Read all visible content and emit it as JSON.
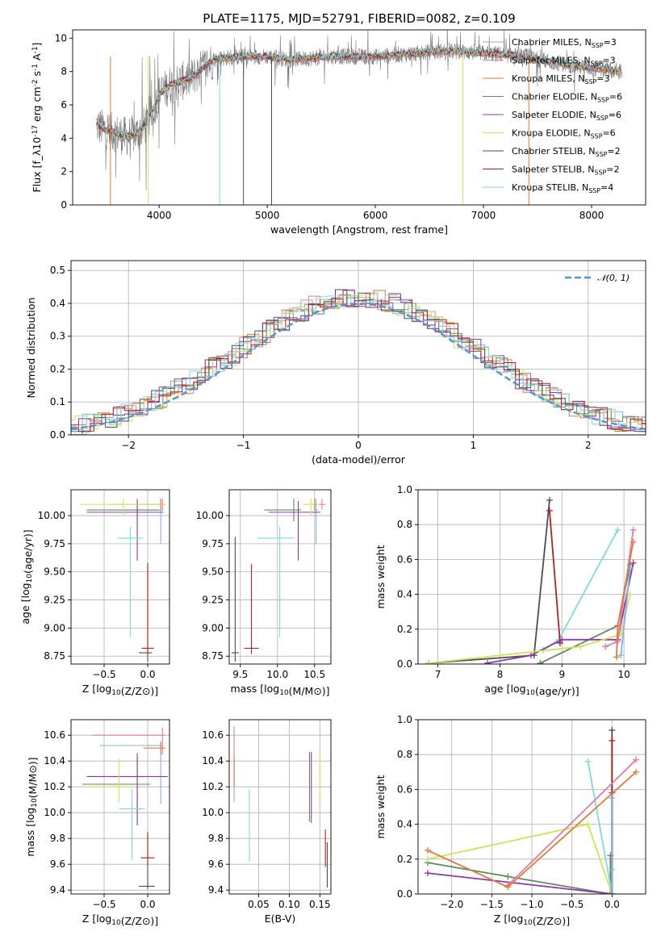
{
  "title": "PLATE=1175, MJD=52791, FIBERID=0082, z=0.109",
  "series": [
    {
      "name": "Chabrier MILES, N_{SSP}=3",
      "color": "#7fb2e5"
    },
    {
      "name": "Salpeter MILES, N_{SSP}=3",
      "color": "#e37ba7"
    },
    {
      "name": "Kroupa MILES, N_{SSP}=3",
      "color": "#e07b39"
    },
    {
      "name": "Chabrier ELODIE, N_{SSP}=6",
      "color": "#5d8a5e"
    },
    {
      "name": "Salpeter ELODIE, N_{SSP}=6",
      "color": "#8b3aa8"
    },
    {
      "name": "Kroupa ELODIE, N_{SSP}=6",
      "color": "#d4e157"
    },
    {
      "name": "Chabrier STELIB, N_{SSP}=2",
      "color": "#4d4d4d"
    },
    {
      "name": "Salpeter STELIB, N_{SSP}=2",
      "color": "#b22222"
    },
    {
      "name": "Kroupa STELIB, N_{SSP}=4",
      "color": "#7fdbdb"
    }
  ],
  "chart_data": [
    {
      "id": "spectrum",
      "type": "line",
      "title": "PLATE=1175, MJD=52791, FIBERID=0082, z=0.109",
      "xlabel": "wavelength [Angstrom, rest frame]",
      "ylabel": "Flux [f_λ10^{-17} erg cm^{-2} s^{-1} A^{-1}]",
      "xlim": [
        3200,
        8500
      ],
      "ylim": [
        0,
        10.5
      ],
      "xticks": [
        4000,
        5000,
        6000,
        7000,
        8000
      ],
      "yticks": [
        0,
        2,
        4,
        6,
        8,
        10
      ],
      "grid": false,
      "legend": "right",
      "data_range": [
        3420,
        8280
      ],
      "continuum": {
        "x": [
          3420,
          3500,
          3600,
          3700,
          3800,
          3900,
          4000,
          4100,
          4200,
          4300,
          4400,
          4500,
          4600,
          4800,
          5000,
          5200,
          5400,
          5600,
          5800,
          6000,
          6200,
          6400,
          6600,
          6800,
          7000,
          7200,
          7400,
          7600,
          7800,
          8000,
          8280
        ],
        "y": [
          4.8,
          4.5,
          4.3,
          4.1,
          4.3,
          5.0,
          6.6,
          7.2,
          7.4,
          7.6,
          8.2,
          8.7,
          8.8,
          8.9,
          8.9,
          8.7,
          8.8,
          8.9,
          8.9,
          8.9,
          9.0,
          9.1,
          9.2,
          9.2,
          9.1,
          9.0,
          8.9,
          8.6,
          8.4,
          8.2,
          8.0
        ]
      },
      "spike_lines": [
        {
          "x": 3550,
          "color": "#e07b39"
        },
        {
          "x": 3900,
          "color": "#d4e157"
        },
        {
          "x": 4560,
          "color": "#7fdbdb"
        },
        {
          "x": 4780,
          "color": "#4d4d4d"
        },
        {
          "x": 5040,
          "color": "#4d4d4d"
        },
        {
          "x": 6810,
          "color": "#d4e157"
        },
        {
          "x": 7420,
          "color": "#e07b39"
        }
      ]
    },
    {
      "id": "residuals",
      "type": "step",
      "xlabel": "(data-model)/error",
      "ylabel": "Normed distribution",
      "xlim": [
        -2.5,
        2.5
      ],
      "ylim": [
        0,
        0.53
      ],
      "xticks": [
        -2,
        -1,
        0,
        1,
        2
      ],
      "yticks": [
        0.0,
        0.1,
        0.2,
        0.3,
        0.4,
        0.5
      ],
      "grid": true,
      "legend": "top-right",
      "reference_curve": {
        "name": "𝒩(0, 1)",
        "mean": 0,
        "std": 1,
        "color": "#5b8fd6"
      },
      "bin_width": 0.1
    },
    {
      "id": "age_vs_z",
      "type": "errorbar",
      "xlabel": "Z [log10(Z/Z⊙)]",
      "ylabel": "age  [log10(age/yr)]",
      "xlim": [
        -0.88,
        0.25
      ],
      "ylim": [
        8.68,
        10.23
      ],
      "xticks": [
        -0.5,
        0.0
      ],
      "yticks": [
        8.75,
        9.0,
        9.25,
        9.5,
        9.75,
        10.0
      ],
      "grid": true,
      "points": [
        {
          "s": 0,
          "x": 0.15,
          "y": 10.05,
          "xerr": [
            0.5,
            0.03
          ],
          "yerr": [
            0.3,
            0.1
          ]
        },
        {
          "s": 1,
          "x": 0.17,
          "y": 10.1,
          "xerr": [
            0.6,
            0.03
          ],
          "yerr": [
            0.05,
            0.05
          ]
        },
        {
          "s": 2,
          "x": 0.15,
          "y": 10.1,
          "xerr": [
            0.1,
            0.05
          ],
          "yerr": [
            0.05,
            0.05
          ]
        },
        {
          "s": 3,
          "x": -0.12,
          "y": 10.05,
          "xerr": [
            0.58,
            0.25
          ],
          "yerr": [
            0.1,
            0.1
          ]
        },
        {
          "s": 4,
          "x": -0.12,
          "y": 10.03,
          "xerr": [
            0.58,
            0.3
          ],
          "yerr": [
            0.43,
            0.1
          ]
        },
        {
          "s": 5,
          "x": -0.28,
          "y": 10.1,
          "xerr": [
            0.5,
            0.48
          ],
          "yerr": [
            0.1,
            0.05
          ]
        },
        {
          "s": 6,
          "x": 0.0,
          "y": 8.78,
          "xerr": [
            0.1,
            0.05
          ],
          "yerr": [
            0.08,
            0.8
          ]
        },
        {
          "s": 7,
          "x": 0.0,
          "y": 8.82,
          "xerr": [
            0.07,
            0.07
          ],
          "yerr": [
            0.05,
            0.75
          ]
        },
        {
          "s": 8,
          "x": -0.2,
          "y": 9.8,
          "xerr": [
            0.15,
            0.15
          ],
          "yerr": [
            0.88,
            0.1
          ]
        }
      ]
    },
    {
      "id": "age_vs_mass",
      "type": "errorbar",
      "xlabel": "mass [log10(M/M⊙)]",
      "ylabel": "",
      "xlim": [
        9.35,
        10.72
      ],
      "ylim": [
        8.68,
        10.23
      ],
      "xticks": [
        9.5,
        10.0,
        10.5
      ],
      "yticks": [
        8.75,
        9.0,
        9.25,
        9.5,
        9.75,
        10.0
      ],
      "grid": true,
      "points": [
        {
          "s": 0,
          "x": 10.52,
          "y": 10.05,
          "xerr": [
            0.03,
            0.03
          ],
          "yerr": [
            0.3,
            0.1
          ]
        },
        {
          "s": 1,
          "x": 10.6,
          "y": 10.1,
          "xerr": [
            0.05,
            0.05
          ],
          "yerr": [
            0.05,
            0.05
          ]
        },
        {
          "s": 2,
          "x": 10.5,
          "y": 10.1,
          "xerr": [
            0.03,
            0.03
          ],
          "yerr": [
            0.05,
            0.05
          ]
        },
        {
          "s": 3,
          "x": 10.22,
          "y": 10.05,
          "xerr": [
            0.4,
            0.1
          ],
          "yerr": [
            0.1,
            0.1
          ]
        },
        {
          "s": 4,
          "x": 10.28,
          "y": 10.03,
          "xerr": [
            0.4,
            0.3
          ],
          "yerr": [
            0.43,
            0.1
          ]
        },
        {
          "s": 5,
          "x": 10.45,
          "y": 10.1,
          "xerr": [
            0.1,
            0.05
          ],
          "yerr": [
            0.1,
            0.05
          ]
        },
        {
          "s": 6,
          "x": 9.43,
          "y": 8.78,
          "xerr": [
            0.05,
            0.05
          ],
          "yerr": [
            0.08,
            1.03
          ]
        },
        {
          "s": 7,
          "x": 9.65,
          "y": 8.82,
          "xerr": [
            0.1,
            0.1
          ],
          "yerr": [
            0.05,
            0.75
          ]
        },
        {
          "s": 8,
          "x": 10.03,
          "y": 9.8,
          "xerr": [
            0.3,
            0.2
          ],
          "yerr": [
            0.88,
            0.1
          ]
        }
      ]
    },
    {
      "id": "massweight_vs_age",
      "type": "line",
      "xlabel": "age  [log10(age/yr)]",
      "ylabel": "mass weight",
      "xlim": [
        6.68,
        10.35
      ],
      "ylim": [
        0,
        1.0
      ],
      "xticks": [
        7,
        8,
        9,
        10
      ],
      "yticks": [
        0.0,
        0.2,
        0.4,
        0.6,
        0.8,
        1.0
      ],
      "grid": true,
      "lines": [
        {
          "s": 8,
          "x": [
            8.7,
            8.95,
            9.9
          ],
          "y": [
            0.08,
            0.14,
            0.77
          ]
        },
        {
          "s": 6,
          "x": [
            8.8,
            8.55,
            6.85
          ],
          "y": [
            0.94,
            0.05,
            0.005
          ]
        },
        {
          "s": 7,
          "x": [
            8.8,
            8.97
          ],
          "y": [
            0.88,
            0.12
          ]
        },
        {
          "s": 3,
          "x": [
            8.65,
            9.9,
            10.1
          ],
          "y": [
            0.005,
            0.22,
            0.57
          ]
        },
        {
          "s": 4,
          "x": [
            7.8,
            8.5,
            9.0,
            9.9,
            10.15
          ],
          "y": [
            0.005,
            0.05,
            0.14,
            0.14,
            0.58
          ]
        },
        {
          "s": 5,
          "x": [
            6.85,
            9.3,
            9.95,
            10.1
          ],
          "y": [
            0.005,
            0.1,
            0.17,
            0.4
          ]
        },
        {
          "s": 1,
          "x": [
            9.7,
            9.9,
            10.15
          ],
          "y": [
            0.1,
            0.13,
            0.77
          ]
        },
        {
          "s": 2,
          "x": [
            9.88,
            9.9,
            10.15
          ],
          "y": [
            0.04,
            0.22,
            0.7
          ]
        },
        {
          "s": 0,
          "x": [
            9.95,
            10.1
          ],
          "y": [
            0.05,
            0.55
          ]
        }
      ]
    },
    {
      "id": "mass_vs_z",
      "type": "errorbar",
      "xlabel": "Z [log10(Z/Z⊙)]",
      "ylabel": "mass [log10(M/M⊙)]",
      "xlim": [
        -0.88,
        0.25
      ],
      "ylim": [
        9.37,
        10.72
      ],
      "xticks": [
        -0.5,
        0.0
      ],
      "yticks": [
        9.4,
        9.6,
        9.8,
        10.0,
        10.2,
        10.4,
        10.6
      ],
      "grid": true,
      "points": [
        {
          "s": 0,
          "x": 0.15,
          "y": 10.52,
          "xerr": [
            0.7,
            0.03
          ],
          "yerr": [
            0.45,
            0.03
          ]
        },
        {
          "s": 1,
          "x": 0.17,
          "y": 10.6,
          "xerr": [
            0.8,
            0.03
          ],
          "yerr": [
            0.15,
            0.06
          ]
        },
        {
          "s": 2,
          "x": 0.15,
          "y": 10.5,
          "xerr": [
            0.2,
            0.05
          ],
          "yerr": [
            0.05,
            0.05
          ]
        },
        {
          "s": 3,
          "x": -0.12,
          "y": 10.22,
          "xerr": [
            0.63,
            0.15
          ],
          "yerr": [
            0.3,
            0.2
          ]
        },
        {
          "s": 4,
          "x": -0.12,
          "y": 10.28,
          "xerr": [
            0.58,
            0.35
          ],
          "yerr": [
            0.38,
            0.18
          ]
        },
        {
          "s": 5,
          "x": -0.33,
          "y": 10.2,
          "xerr": [
            0.38,
            0.15
          ],
          "yerr": [
            0.12,
            0.22
          ]
        },
        {
          "s": 6,
          "x": 0.0,
          "y": 9.43,
          "xerr": [
            0.1,
            0.08
          ],
          "yerr": [
            0.02,
            0.4
          ]
        },
        {
          "s": 7,
          "x": 0.0,
          "y": 9.65,
          "xerr": [
            0.08,
            0.08
          ],
          "yerr": [
            0.05,
            0.2
          ]
        },
        {
          "s": 8,
          "x": -0.18,
          "y": 10.03,
          "xerr": [
            0.15,
            0.15
          ],
          "yerr": [
            0.4,
            0.15
          ]
        }
      ]
    },
    {
      "id": "mass_vs_ebv",
      "type": "errorbar",
      "xlabel": "E(B-V)",
      "ylabel": "",
      "xlim": [
        0.002,
        0.168
      ],
      "ylim": [
        9.37,
        10.72
      ],
      "xticks": [
        0.05,
        0.1,
        0.15
      ],
      "yticks": [
        9.4,
        9.6,
        9.8,
        10.0,
        10.2,
        10.4,
        10.6
      ],
      "grid": true,
      "points": [
        {
          "s": 0,
          "x": 0.01,
          "y": 10.2,
          "xerr": [
            0,
            0
          ],
          "yerr": [
            0.12,
            0.22
          ]
        },
        {
          "s": 1,
          "x": 0.01,
          "y": 10.45,
          "xerr": [
            0,
            0
          ],
          "yerr": [
            0.25,
            0.22
          ]
        },
        {
          "s": 2,
          "x": 0.01,
          "y": 10.35,
          "xerr": [
            0,
            0
          ],
          "yerr": [
            0.15,
            0.1
          ]
        },
        {
          "s": 3,
          "x": 0.133,
          "y": 10.15,
          "xerr": [
            0,
            0
          ],
          "yerr": [
            0.22,
            0.32
          ]
        },
        {
          "s": 4,
          "x": 0.136,
          "y": 10.2,
          "xerr": [
            0,
            0
          ],
          "yerr": [
            0.28,
            0.27
          ]
        },
        {
          "s": 5,
          "x": 0.15,
          "y": 10.25,
          "xerr": [
            0,
            0
          ],
          "yerr": [
            0.18,
            0.18
          ]
        },
        {
          "s": 6,
          "x": 0.162,
          "y": 9.6,
          "xerr": [
            0,
            0
          ],
          "yerr": [
            0.18,
            0.17
          ]
        },
        {
          "s": 7,
          "x": 0.159,
          "y": 9.7,
          "xerr": [
            0,
            0
          ],
          "yerr": [
            0.12,
            0.17
          ]
        },
        {
          "s": 8,
          "x": 0.035,
          "y": 9.9,
          "xerr": [
            0,
            0
          ],
          "yerr": [
            0.28,
            0.28
          ]
        }
      ]
    },
    {
      "id": "massweight_vs_z",
      "type": "line",
      "xlabel": "Z [log10(Z/Z⊙)]",
      "ylabel": "mass weight",
      "xlim": [
        -2.42,
        0.42
      ],
      "ylim": [
        0,
        1.0
      ],
      "xticks": [
        -2.0,
        -1.5,
        -1.0,
        -0.5,
        0.0
      ],
      "yticks": [
        0.0,
        0.2,
        0.4,
        0.6,
        0.8,
        1.0
      ],
      "grid": true,
      "lines": [
        {
          "s": 3,
          "x": [
            -2.3,
            -1.3,
            -0.02,
            -0.02
          ],
          "y": [
            0.18,
            0.1,
            0.0,
            0.22
          ]
        },
        {
          "s": 4,
          "x": [
            -2.3,
            0.0,
            0.0
          ],
          "y": [
            0.12,
            0.0,
            0.58
          ]
        },
        {
          "s": 5,
          "x": [
            -2.3,
            -0.3,
            0.0
          ],
          "y": [
            0.2,
            0.4,
            0.0
          ]
        },
        {
          "s": 8,
          "x": [
            -0.3,
            0.0,
            0.0
          ],
          "y": [
            0.76,
            0.0,
            0.14
          ]
        },
        {
          "s": 6,
          "x": [
            0.0,
            0.0
          ],
          "y": [
            0.0,
            0.94
          ]
        },
        {
          "s": 7,
          "x": [
            0.0,
            0.0
          ],
          "y": [
            0.0,
            0.88
          ]
        },
        {
          "s": 1,
          "x": [
            -1.3,
            0.3
          ],
          "y": [
            0.05,
            0.77
          ]
        },
        {
          "s": 2,
          "x": [
            -2.3,
            -1.3,
            0.3
          ],
          "y": [
            0.25,
            0.04,
            0.7
          ]
        },
        {
          "s": 0,
          "x": [
            0.0,
            0.0
          ],
          "y": [
            0.0,
            0.55
          ]
        }
      ]
    }
  ]
}
